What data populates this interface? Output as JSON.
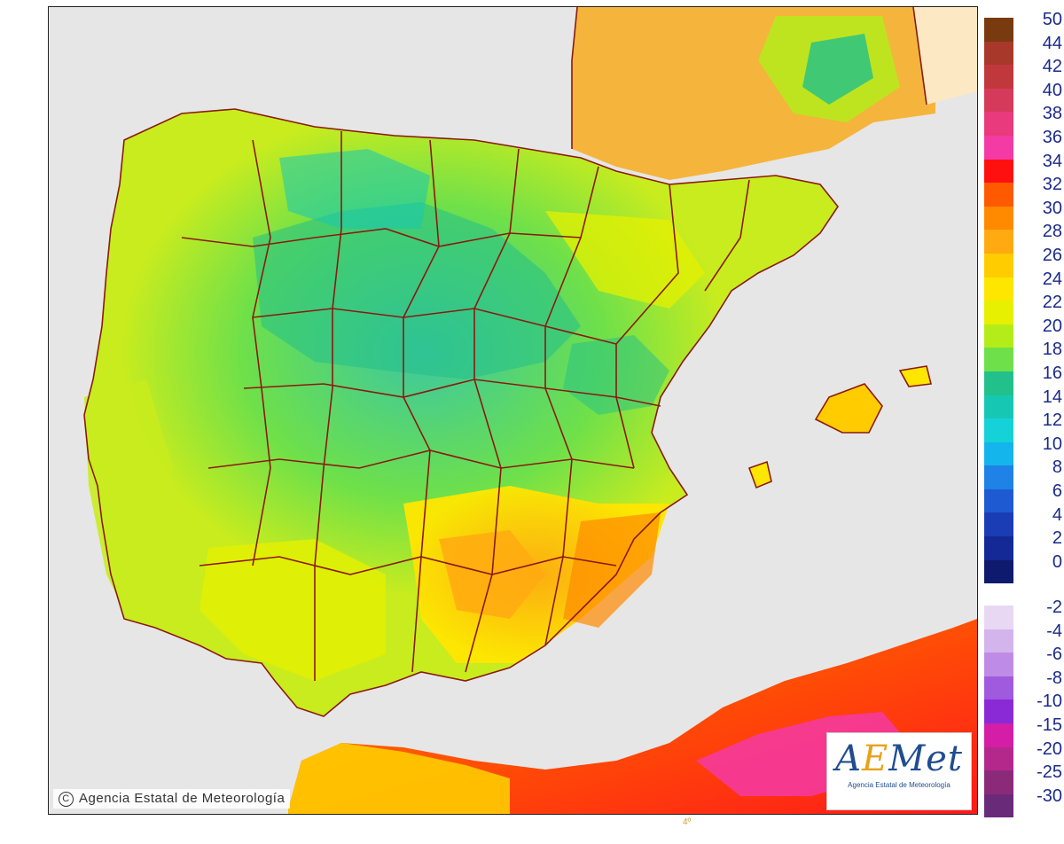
{
  "map": {
    "copyright": "Agencia Estatal de Meteorología",
    "logo_text_a": "A",
    "logo_text_e": "E",
    "logo_text_rest": "Met",
    "logo_subtitle": "Agencia Estatal de Meteorología",
    "footer_mark": "4º",
    "colors": {
      "sea": "#e6e6e6",
      "border": "#8b1a10",
      "france": "#f5b43c",
      "africa_hot": "#ff1a1a",
      "africa_pink": "#ff3cb0"
    }
  },
  "legend": {
    "positive": [
      {
        "label": "50",
        "color": "#7a3a10"
      },
      {
        "label": "44",
        "color": "#a8382a"
      },
      {
        "label": "42",
        "color": "#c0383c"
      },
      {
        "label": "40",
        "color": "#d63a5a"
      },
      {
        "label": "38",
        "color": "#e83a7c"
      },
      {
        "label": "36",
        "color": "#f43aa4"
      },
      {
        "label": "34",
        "color": "#ff1010"
      },
      {
        "label": "32",
        "color": "#ff5a00"
      },
      {
        "label": "30",
        "color": "#ff8a00"
      },
      {
        "label": "28",
        "color": "#ffaa10"
      },
      {
        "label": "26",
        "color": "#ffcc00"
      },
      {
        "label": "24",
        "color": "#ffe600"
      },
      {
        "label": "22",
        "color": "#e6f000"
      },
      {
        "label": "20",
        "color": "#b4ec1a"
      },
      {
        "label": "18",
        "color": "#6ee04a"
      },
      {
        "label": "16",
        "color": "#22c08a"
      },
      {
        "label": "14",
        "color": "#16c8b4"
      },
      {
        "label": "12",
        "color": "#14d2d8"
      },
      {
        "label": "10",
        "color": "#14b4ec"
      },
      {
        "label": "8",
        "color": "#1e82e6"
      },
      {
        "label": "6",
        "color": "#1e5ad2"
      },
      {
        "label": "4",
        "color": "#1a3cb4"
      },
      {
        "label": "2",
        "color": "#142896"
      },
      {
        "label": "0",
        "color": "#0e1a6e"
      }
    ],
    "negative": [
      {
        "label": "-2",
        "color": "#e8d8f4"
      },
      {
        "label": "-4",
        "color": "#d4b4ec"
      },
      {
        "label": "-6",
        "color": "#be8ce6"
      },
      {
        "label": "-8",
        "color": "#a05ade"
      },
      {
        "label": "-10",
        "color": "#8a2ad6"
      },
      {
        "label": "-15",
        "color": "#d41ea8"
      },
      {
        "label": "-20",
        "color": "#b4288c"
      },
      {
        "label": "-25",
        "color": "#8c2a7a"
      },
      {
        "label": "-30",
        "color": "#6a2a7a"
      }
    ]
  }
}
